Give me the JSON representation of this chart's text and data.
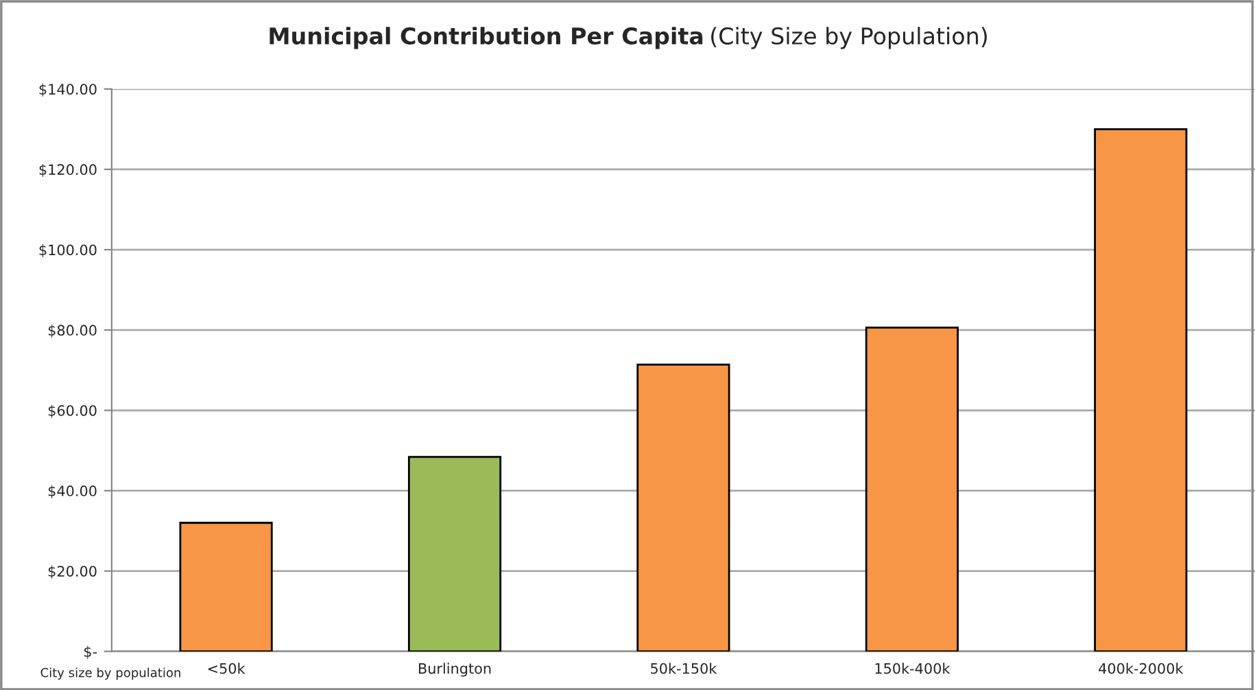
{
  "chart_data": {
    "type": "bar",
    "title": "Municipal Contribution Per Capita",
    "subtitle": "(City Size by Population)",
    "xlabel": "City size by population",
    "categories": [
      "<50k",
      "Burlington",
      "50k-150k",
      "150k-400k",
      "400k-2000k"
    ],
    "values": [
      32.0,
      48.4,
      71.4,
      80.6,
      130
    ],
    "colors": [
      "#f79646",
      "#9bbb59",
      "#f79646",
      "#f79646",
      "#f79646"
    ],
    "ylim": [
      0,
      140
    ],
    "yticks": [
      {
        "value": 0,
        "label": "$-"
      },
      {
        "value": 20,
        "label": "$20.00"
      },
      {
        "value": 40,
        "label": "$40.00"
      },
      {
        "value": 60,
        "label": "$60.00"
      },
      {
        "value": 80,
        "label": "$80.00"
      },
      {
        "value": 100,
        "label": "$100.00"
      },
      {
        "value": 120,
        "label": "$120.00"
      },
      {
        "value": 140,
        "label": "$140.00"
      }
    ],
    "grid": "y"
  }
}
